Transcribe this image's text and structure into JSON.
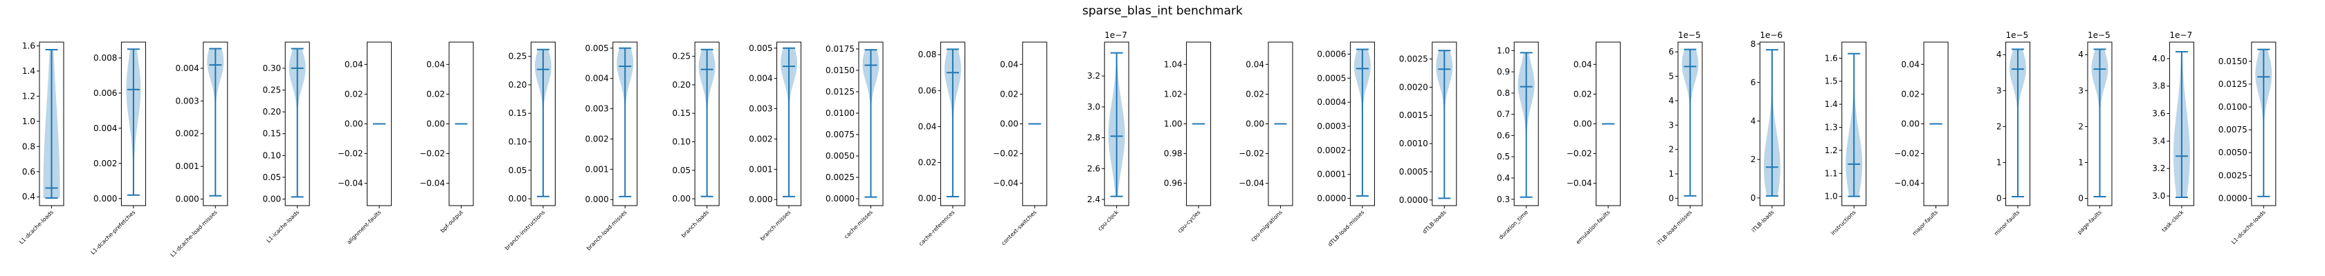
{
  "figure": {
    "title": "sparse_blas_int benchmark"
  },
  "chart_data": [
    {
      "type": "violin",
      "category": "L1-dcache-loads",
      "ylim": [
        0.33,
        1.63
      ],
      "yticks": [
        0.4,
        0.6,
        0.8,
        1.0,
        1.2,
        1.4,
        1.6
      ],
      "tick_labels": [
        "0.4",
        "0.6",
        "0.8",
        "1.0",
        "1.2",
        "1.4",
        "1.6"
      ],
      "multiplier": "",
      "min": 0.39,
      "max": 1.57,
      "median": 0.47,
      "mode": 0.47,
      "spread": 0.55,
      "width": 0.8
    },
    {
      "type": "violin",
      "category": "L1-dcache-prefetches",
      "ylim": [
        -0.0004,
        0.0089
      ],
      "yticks": [
        0.0,
        0.002,
        0.004,
        0.006,
        0.008
      ],
      "tick_labels": [
        "0.000",
        "0.002",
        "0.004",
        "0.006",
        "0.008"
      ],
      "multiplier": "",
      "min": 0.0002,
      "max": 0.0085,
      "median": 0.0062,
      "mode": 0.0062,
      "spread": 0.22,
      "width": 0.7
    },
    {
      "type": "violin",
      "category": "L1-dcache-load-misses",
      "ylim": [
        -0.0002,
        0.0048
      ],
      "yticks": [
        0.0,
        0.001,
        0.002,
        0.003,
        0.004
      ],
      "tick_labels": [
        "0.000",
        "0.001",
        "0.002",
        "0.003",
        "0.004"
      ],
      "multiplier": "",
      "min": 0.0001,
      "max": 0.0046,
      "median": 0.0041,
      "mode": 0.0042,
      "spread": 0.12,
      "width": 0.8
    },
    {
      "type": "violin",
      "category": "L1-icache-loads",
      "ylim": [
        -0.015,
        0.36
      ],
      "yticks": [
        0.0,
        0.05,
        0.1,
        0.15,
        0.2,
        0.25,
        0.3
      ],
      "tick_labels": [
        "0.00",
        "0.05",
        "0.10",
        "0.15",
        "0.20",
        "0.25",
        "0.30"
      ],
      "multiplier": "",
      "min": 0.005,
      "max": 0.345,
      "median": 0.3,
      "mode": 0.3,
      "spread": 0.12,
      "width": 0.8
    },
    {
      "type": "violin",
      "category": "alignment-faults",
      "ylim": [
        -0.055,
        0.055
      ],
      "yticks": [
        -0.04,
        -0.02,
        0.0,
        0.02,
        0.04
      ],
      "tick_labels": [
        "−0.04",
        "−0.02",
        "0.00",
        "0.02",
        "0.04"
      ],
      "multiplier": "",
      "min": 0,
      "max": 0,
      "median": 0,
      "mode": 0,
      "spread": 0.1,
      "width": 0
    },
    {
      "type": "violin",
      "category": "bpf-output",
      "ylim": [
        -0.055,
        0.055
      ],
      "yticks": [
        -0.04,
        -0.02,
        0.0,
        0.02,
        0.04
      ],
      "tick_labels": [
        "−0.04",
        "−0.02",
        "0.00",
        "0.02",
        "0.04"
      ],
      "multiplier": "",
      "min": 0,
      "max": 0,
      "median": 0,
      "mode": 0,
      "spread": 0.1,
      "width": 0
    },
    {
      "type": "violin",
      "category": "branch-instructions",
      "ylim": [
        -0.012,
        0.275
      ],
      "yticks": [
        0.0,
        0.05,
        0.1,
        0.15,
        0.2,
        0.25
      ],
      "tick_labels": [
        "0.00",
        "0.05",
        "0.10",
        "0.15",
        "0.20",
        "0.25"
      ],
      "multiplier": "",
      "min": 0.004,
      "max": 0.262,
      "median": 0.227,
      "mode": 0.232,
      "spread": 0.12,
      "width": 0.8
    },
    {
      "type": "violin",
      "category": "branch-load-misses",
      "ylim": [
        -0.0002,
        0.0052
      ],
      "yticks": [
        0.0,
        0.001,
        0.002,
        0.003,
        0.004,
        0.005
      ],
      "tick_labels": [
        "0.000",
        "0.001",
        "0.002",
        "0.003",
        "0.004",
        "0.005"
      ],
      "multiplier": "",
      "min": 0.0001,
      "max": 0.005,
      "median": 0.0044,
      "mode": 0.0045,
      "spread": 0.12,
      "width": 0.8
    },
    {
      "type": "violin",
      "category": "branch-loads",
      "ylim": [
        -0.012,
        0.275
      ],
      "yticks": [
        0.0,
        0.05,
        0.1,
        0.15,
        0.2,
        0.25
      ],
      "tick_labels": [
        "0.00",
        "0.05",
        "0.10",
        "0.15",
        "0.20",
        "0.25"
      ],
      "multiplier": "",
      "min": 0.004,
      "max": 0.262,
      "median": 0.227,
      "mode": 0.232,
      "spread": 0.12,
      "width": 0.8
    },
    {
      "type": "violin",
      "category": "branch-misses",
      "ylim": [
        -0.0002,
        0.0052
      ],
      "yticks": [
        0.0,
        0.001,
        0.002,
        0.003,
        0.004,
        0.005
      ],
      "tick_labels": [
        "0.000",
        "0.001",
        "0.002",
        "0.003",
        "0.004",
        "0.005"
      ],
      "multiplier": "",
      "min": 0.0001,
      "max": 0.005,
      "median": 0.0044,
      "mode": 0.0045,
      "spread": 0.12,
      "width": 0.8
    },
    {
      "type": "violin",
      "category": "cache-misses",
      "ylim": [
        -0.0008,
        0.0183
      ],
      "yticks": [
        0.0,
        0.0025,
        0.005,
        0.0075,
        0.01,
        0.0125,
        0.015,
        0.0175
      ],
      "tick_labels": [
        "0.0000",
        "0.0025",
        "0.0050",
        "0.0075",
        "0.0100",
        "0.0125",
        "0.0150",
        "0.0175"
      ],
      "multiplier": "",
      "min": 0.0002,
      "max": 0.0174,
      "median": 0.0156,
      "mode": 0.0157,
      "spread": 0.12,
      "width": 0.8
    },
    {
      "type": "violin",
      "category": "cache-references",
      "ylim": [
        -0.004,
        0.087
      ],
      "yticks": [
        0.0,
        0.02,
        0.04,
        0.06,
        0.08
      ],
      "tick_labels": [
        "0.00",
        "0.02",
        "0.04",
        "0.06",
        "0.08"
      ],
      "multiplier": "",
      "min": 0.001,
      "max": 0.083,
      "median": 0.07,
      "mode": 0.072,
      "spread": 0.14,
      "width": 0.8
    },
    {
      "type": "violin",
      "category": "context-switches",
      "ylim": [
        -0.055,
        0.055
      ],
      "yticks": [
        -0.04,
        -0.02,
        0.0,
        0.02,
        0.04
      ],
      "tick_labels": [
        "−0.04",
        "−0.02",
        "0.00",
        "0.02",
        "0.04"
      ],
      "multiplier": "",
      "min": 0,
      "max": 0,
      "median": 0,
      "mode": 0,
      "spread": 0.1,
      "width": 0
    },
    {
      "type": "violin",
      "category": "cpu-clock",
      "ylim": [
        2.36,
        3.42
      ],
      "yticks": [
        2.4,
        2.6,
        2.8,
        3.0,
        3.2
      ],
      "tick_labels": [
        "2.4",
        "2.6",
        "2.8",
        "3.0",
        "3.2"
      ],
      "multiplier": "1e−7",
      "min": 2.42,
      "max": 3.35,
      "median": 2.81,
      "mode": 2.82,
      "spread": 0.22,
      "width": 0.8
    },
    {
      "type": "violin",
      "category": "cpu-cycles",
      "ylim": [
        0.945,
        1.055
      ],
      "yticks": [
        0.96,
        0.98,
        1.0,
        1.02,
        1.04
      ],
      "tick_labels": [
        "0.96",
        "0.98",
        "1.00",
        "1.02",
        "1.04"
      ],
      "multiplier": "",
      "min": 1,
      "max": 1,
      "median": 1,
      "mode": 1,
      "spread": 0.1,
      "width": 0
    },
    {
      "type": "violin",
      "category": "cpu-migrations",
      "ylim": [
        -0.055,
        0.055
      ],
      "yticks": [
        -0.04,
        -0.02,
        0.0,
        0.02,
        0.04
      ],
      "tick_labels": [
        "−0.04",
        "−0.02",
        "0.00",
        "0.02",
        "0.04"
      ],
      "multiplier": "",
      "min": 0,
      "max": 0,
      "median": 0,
      "mode": 0,
      "spread": 0.1,
      "width": 0
    },
    {
      "type": "violin",
      "category": "dTLB-load-misses",
      "ylim": [
        -3e-05,
        0.00065
      ],
      "yticks": [
        0.0,
        0.0001,
        0.0002,
        0.0003,
        0.0004,
        0.0005,
        0.0006
      ],
      "tick_labels": [
        "0.0000",
        "0.0001",
        "0.0002",
        "0.0003",
        "0.0004",
        "0.0005",
        "0.0006"
      ],
      "multiplier": "",
      "min": 1e-05,
      "max": 0.00062,
      "median": 0.00054,
      "mode": 0.00055,
      "spread": 0.12,
      "width": 0.8
    },
    {
      "type": "violin",
      "category": "dTLB-loads",
      "ylim": [
        -0.0001,
        0.0028
      ],
      "yticks": [
        0.0,
        0.0005,
        0.001,
        0.0015,
        0.002,
        0.0025
      ],
      "tick_labels": [
        "0.0000",
        "0.0005",
        "0.0010",
        "0.0015",
        "0.0020",
        "0.0025"
      ],
      "multiplier": "",
      "min": 3e-05,
      "max": 0.00265,
      "median": 0.00232,
      "mode": 0.00236,
      "spread": 0.12,
      "width": 0.8
    },
    {
      "type": "violin",
      "category": "duration_time",
      "ylim": [
        0.27,
        1.04
      ],
      "yticks": [
        0.3,
        0.4,
        0.5,
        0.6,
        0.7,
        0.8,
        0.9,
        1.0
      ],
      "tick_labels": [
        "0.3",
        "0.4",
        "0.5",
        "0.6",
        "0.7",
        "0.8",
        "0.9",
        "1.0"
      ],
      "multiplier": "",
      "min": 0.31,
      "max": 0.99,
      "median": 0.83,
      "mode": 0.84,
      "spread": 0.14,
      "width": 0.8
    },
    {
      "type": "violin",
      "category": "emulation-faults",
      "ylim": [
        -0.055,
        0.055
      ],
      "yticks": [
        -0.04,
        -0.02,
        0.0,
        0.02,
        0.04
      ],
      "tick_labels": [
        "−0.04",
        "−0.02",
        "0.00",
        "0.02",
        "0.04"
      ],
      "multiplier": "",
      "min": 0,
      "max": 0,
      "median": 0,
      "mode": 0,
      "spread": 0.1,
      "width": 0
    },
    {
      "type": "violin",
      "category": "iTLB-load-misses",
      "ylim": [
        -0.3,
        6.4
      ],
      "yticks": [
        0,
        1,
        2,
        3,
        4,
        5,
        6
      ],
      "tick_labels": [
        "0",
        "1",
        "2",
        "3",
        "4",
        "5",
        "6"
      ],
      "multiplier": "1e−5",
      "min": 0.1,
      "max": 6.1,
      "median": 5.4,
      "mode": 5.5,
      "spread": 0.12,
      "width": 0.8
    },
    {
      "type": "violin",
      "category": "iTLB-loads",
      "ylim": [
        -0.4,
        8.1
      ],
      "yticks": [
        0,
        2,
        4,
        6,
        8
      ],
      "tick_labels": [
        "0",
        "2",
        "4",
        "6",
        "8"
      ],
      "multiplier": "1e−6",
      "min": 0.1,
      "max": 7.7,
      "median": 1.6,
      "mode": 1.6,
      "spread": 0.22,
      "width": 0.8
    },
    {
      "type": "violin",
      "category": "instructions",
      "ylim": [
        0.96,
        1.67
      ],
      "yticks": [
        1.0,
        1.1,
        1.2,
        1.3,
        1.4,
        1.5,
        1.6
      ],
      "tick_labels": [
        "1.0",
        "1.1",
        "1.2",
        "1.3",
        "1.4",
        "1.5",
        "1.6"
      ],
      "multiplier": "",
      "min": 1.0,
      "max": 1.62,
      "median": 1.14,
      "mode": 1.14,
      "spread": 0.22,
      "width": 0.8
    },
    {
      "type": "violin",
      "category": "major-faults",
      "ylim": [
        -0.055,
        0.055
      ],
      "yticks": [
        -0.04,
        -0.02,
        0.0,
        0.02,
        0.04
      ],
      "tick_labels": [
        "−0.04",
        "−0.02",
        "0.00",
        "0.02",
        "0.04"
      ],
      "multiplier": "",
      "min": 0,
      "max": 0,
      "median": 0,
      "mode": 0,
      "spread": 0.1,
      "width": 0
    },
    {
      "type": "violin",
      "category": "minor-faults",
      "ylim": [
        -0.2,
        4.35
      ],
      "yticks": [
        0,
        1,
        2,
        3,
        4
      ],
      "tick_labels": [
        "0",
        "1",
        "2",
        "3",
        "4"
      ],
      "multiplier": "1e−5",
      "min": 0.05,
      "max": 4.15,
      "median": 3.6,
      "mode": 3.62,
      "spread": 0.12,
      "width": 0.8
    },
    {
      "type": "violin",
      "category": "page-faults",
      "ylim": [
        -0.2,
        4.35
      ],
      "yticks": [
        0,
        1,
        2,
        3,
        4
      ],
      "tick_labels": [
        "0",
        "1",
        "2",
        "3",
        "4"
      ],
      "multiplier": "1e−5",
      "min": 0.05,
      "max": 4.15,
      "median": 3.6,
      "mode": 3.62,
      "spread": 0.12,
      "width": 0.8
    },
    {
      "type": "violin",
      "category": "task-clock",
      "ylim": [
        2.93,
        4.12
      ],
      "yticks": [
        3.0,
        3.2,
        3.4,
        3.6,
        3.8,
        4.0
      ],
      "tick_labels": [
        "3.0",
        "3.2",
        "3.4",
        "3.6",
        "3.8",
        "4.0"
      ],
      "multiplier": "1e−7",
      "min": 2.99,
      "max": 4.05,
      "median": 3.29,
      "mode": 3.3,
      "spread": 0.3,
      "width": 0.8
    },
    {
      "type": "violin",
      "category": "L1-dcache-loads",
      "ylim": [
        -0.0008,
        0.0171
      ],
      "yticks": [
        0.0,
        0.0025,
        0.005,
        0.0075,
        0.01,
        0.0125,
        0.015
      ],
      "tick_labels": [
        "0.0000",
        "0.0025",
        "0.0050",
        "0.0075",
        "0.0100",
        "0.0125",
        "0.0150"
      ],
      "multiplier": "",
      "min": 0.0002,
      "max": 0.0163,
      "median": 0.0133,
      "mode": 0.0136,
      "spread": 0.14,
      "width": 0.8
    }
  ]
}
